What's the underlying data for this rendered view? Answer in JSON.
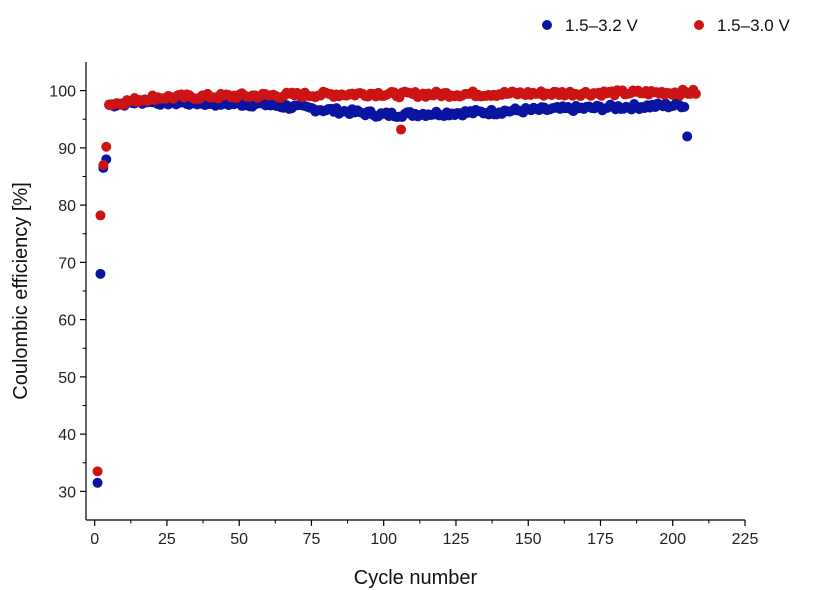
{
  "chart_data": {
    "type": "scatter",
    "xlabel": "Cycle number",
    "ylabel": "Coulombic efficiency [%]",
    "xlim": [
      -3,
      225
    ],
    "ylim": [
      25,
      105
    ],
    "x_ticks": [
      0,
      25,
      50,
      75,
      100,
      125,
      150,
      175,
      200,
      225
    ],
    "y_ticks": [
      30,
      40,
      50,
      60,
      70,
      80,
      90,
      100
    ],
    "grid": false,
    "legend_position": "top-right",
    "series": [
      {
        "name": "1.5–3.2 V",
        "color": "#0a14a0",
        "outliers": [
          [
            1,
            31.5
          ],
          [
            2,
            68
          ],
          [
            3,
            86.5
          ],
          [
            4,
            88
          ],
          [
            205,
            92
          ]
        ],
        "ranges": [
          {
            "x_start": 5,
            "x_end": 20,
            "y_start": 97.5,
            "y_end": 98.3
          },
          {
            "x_start": 20,
            "x_end": 60,
            "y_start": 98,
            "y_end": 97.6
          },
          {
            "x_start": 60,
            "x_end": 100,
            "y_start": 97.5,
            "y_end": 95.8
          },
          {
            "x_start": 100,
            "x_end": 140,
            "y_start": 95.8,
            "y_end": 96.3
          },
          {
            "x_start": 140,
            "x_end": 204,
            "y_start": 96.4,
            "y_end": 97.5
          }
        ]
      },
      {
        "name": "1.5–3.0 V",
        "color": "#cc1414",
        "outliers": [
          [
            1,
            33.5
          ],
          [
            2,
            78.2
          ],
          [
            3,
            87
          ],
          [
            4,
            90.2
          ],
          [
            106,
            93.2
          ]
        ],
        "ranges": [
          {
            "x_start": 5,
            "x_end": 20,
            "y_start": 97.6,
            "y_end": 98.8
          },
          {
            "x_start": 20,
            "x_end": 100,
            "y_start": 98.8,
            "y_end": 99.5
          },
          {
            "x_start": 100,
            "x_end": 208,
            "y_start": 99.3,
            "y_end": 99.7
          }
        ]
      }
    ]
  }
}
